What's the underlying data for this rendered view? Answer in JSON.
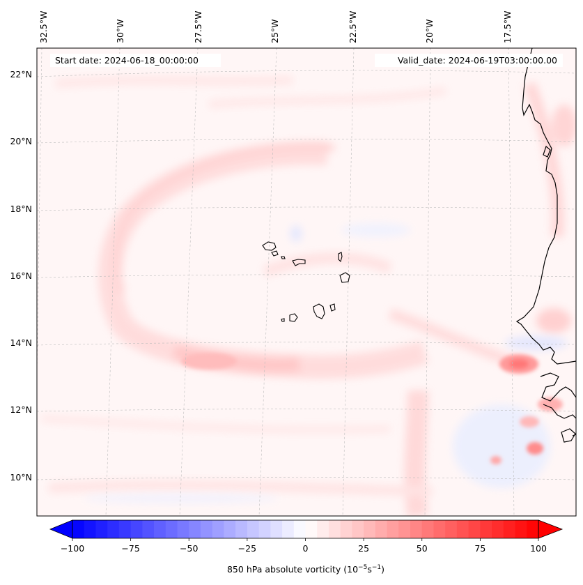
{
  "map": {
    "start_label": "Start date: 2024-06-18_00:00:00",
    "valid_label": "Valid_date: 2024-06-19T03:00:00.00",
    "lon_labels": [
      "32.5°W",
      "30°W",
      "27.5°W",
      "25°W",
      "22.5°W",
      "20°W",
      "17.5°W"
    ],
    "lat_labels": [
      "22°N",
      "20°N",
      "18°N",
      "16°N",
      "14°N",
      "12°N",
      "10°N"
    ],
    "features": {
      "islands": "Cape Verde islands",
      "coastline": "West African coast",
      "field": "850 hPa absolute vorticity shading"
    }
  },
  "colorbar": {
    "label": "850 hPa absolute vorticity (10",
    "label_exp1": "−5",
    "label_mid": "s",
    "label_exp2": "−1",
    "label_end": ")",
    "range": [
      -100,
      100
    ],
    "ticks": [
      "−100",
      "−75",
      "−50",
      "−25",
      "0",
      "25",
      "50",
      "75",
      "100"
    ],
    "neg_color": "#0000ff",
    "pos_color": "#ff0000",
    "mid_color": "#ffffff"
  }
}
